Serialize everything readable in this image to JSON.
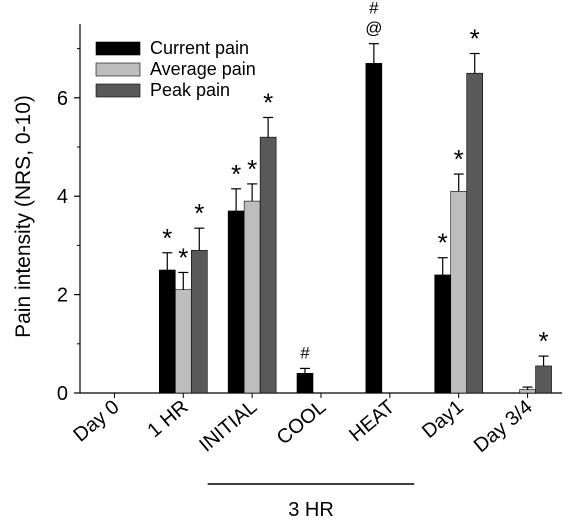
{
  "chart_data": {
    "type": "bar",
    "ylabel": "Pain intensity (NRS, 0-10)",
    "xlabel": "",
    "ylim": [
      0,
      7.5
    ],
    "yticks": [
      0,
      2,
      4,
      6
    ],
    "categories": [
      "Day 0",
      "1 HR",
      "INITIAL",
      "COOL",
      "HEAT",
      "Day1",
      "Day 3/4"
    ],
    "group_label": {
      "text": "3 HR",
      "spans": [
        "INITIAL",
        "HEAT"
      ]
    },
    "legend_position": "top-left",
    "series": [
      {
        "name": "Current pain",
        "color": "#000000",
        "values": [
          0,
          2.5,
          3.7,
          0.4,
          6.7,
          2.4,
          0
        ],
        "errors": [
          0,
          0.35,
          0.45,
          0.1,
          0.4,
          0.35,
          0
        ],
        "markers": [
          "",
          "*",
          "*",
          "#",
          "#\n@",
          "*",
          ""
        ]
      },
      {
        "name": "Average pain",
        "color": "#bdbdbd",
        "values": [
          0,
          2.1,
          3.9,
          0,
          0,
          4.1,
          0.07
        ],
        "errors": [
          0,
          0.35,
          0.35,
          0,
          0,
          0.35,
          0.05
        ],
        "markers": [
          "",
          "*",
          "*",
          "",
          "",
          "*",
          ""
        ]
      },
      {
        "name": "Peak pain",
        "color": "#595959",
        "values": [
          0,
          2.9,
          5.2,
          0,
          0,
          6.5,
          0.55
        ],
        "errors": [
          0,
          0.45,
          0.4,
          0,
          0,
          0.4,
          0.2
        ],
        "markers": [
          "",
          "*",
          "*",
          "",
          "",
          "*",
          "*"
        ]
      }
    ]
  }
}
